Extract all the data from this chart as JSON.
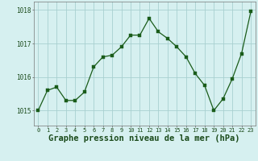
{
  "x": [
    0,
    1,
    2,
    3,
    4,
    5,
    6,
    7,
    8,
    9,
    10,
    11,
    12,
    13,
    14,
    15,
    16,
    17,
    18,
    19,
    20,
    21,
    22,
    23
  ],
  "y": [
    1015.0,
    1015.6,
    1015.7,
    1015.3,
    1015.3,
    1015.55,
    1016.3,
    1016.6,
    1016.65,
    1016.9,
    1017.25,
    1017.25,
    1017.75,
    1017.35,
    1017.15,
    1016.9,
    1016.6,
    1016.1,
    1015.75,
    1015.0,
    1015.35,
    1015.95,
    1016.7,
    1017.95
  ],
  "line_color": "#1a5c1a",
  "marker": "s",
  "marker_size": 2.2,
  "bg_color": "#d6f0f0",
  "grid_color": "#a8d0d0",
  "xlabel": "Graphe pression niveau de la mer (hPa)",
  "xlabel_fontsize": 7.5,
  "ylabel_ticks": [
    1015,
    1016,
    1017,
    1018
  ],
  "ylim": [
    1014.55,
    1018.25
  ],
  "xlim": [
    -0.5,
    23.5
  ],
  "xtick_labels": [
    "0",
    "1",
    "2",
    "3",
    "4",
    "5",
    "6",
    "7",
    "8",
    "9",
    "10",
    "11",
    "12",
    "13",
    "14",
    "15",
    "16",
    "17",
    "18",
    "19",
    "20",
    "21",
    "22",
    "23"
  ],
  "ytick_fontsize": 5.5,
  "xtick_fontsize": 5.0,
  "label_color": "#1a4a1a"
}
